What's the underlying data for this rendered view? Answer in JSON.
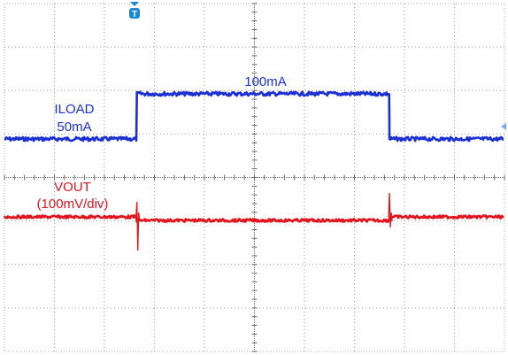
{
  "chart_data": {
    "type": "line",
    "title": "",
    "xlabel": "",
    "ylabel": "",
    "grid": true,
    "grid_style": "dotted",
    "divisions": {
      "x": 10,
      "y": 8
    },
    "series": [
      {
        "name": "ILOAD",
        "color": "#1a2fd6",
        "levels": [
          "50mA",
          "100mA"
        ],
        "x": [
          0,
          2.65,
          2.65,
          7.7,
          7.7,
          10
        ],
        "y": [
          50,
          50,
          100,
          100,
          50,
          50
        ]
      },
      {
        "name": "VOUT",
        "color": "#e3141c",
        "scale": "100mV/div",
        "x": [
          0,
          2.65,
          7.7,
          10
        ],
        "y": [
          0,
          -0.1,
          0,
          0
        ],
        "spikes": [
          2.65,
          7.7
        ]
      }
    ],
    "annotations": {
      "iload_high": "100mA",
      "iload_name": "ILOAD",
      "iload_low": "50mA",
      "vout_name": "VOUT",
      "vout_scale": "(100mV/div)"
    },
    "trigger_marker": "T",
    "colors": {
      "iload": "#1a2fd6",
      "vout": "#e3141c",
      "grid": "#9a9a9a",
      "marker": "#1a88d6"
    }
  }
}
